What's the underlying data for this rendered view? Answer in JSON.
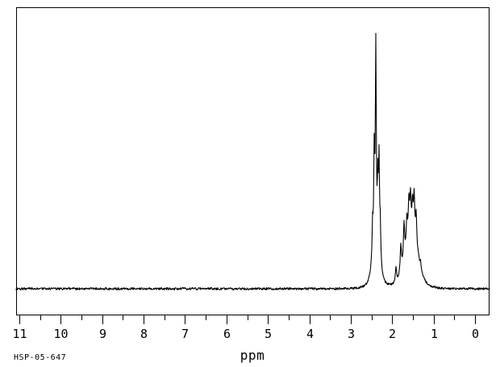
{
  "page": {
    "background": "#ffffff",
    "ink": "#000000"
  },
  "footer": {
    "axis_label": "ppm",
    "sample_id": "HSP-05-647"
  },
  "chart_data": {
    "type": "line",
    "subtype": "1H NMR spectrum",
    "title": "",
    "xlabel": "ppm",
    "ylabel": "",
    "grid": false,
    "legend": false,
    "x_axis": {
      "reversed": true,
      "displayed_range": [
        11.08,
        -0.35
      ],
      "major_tick_values": [
        11,
        10,
        9,
        8,
        7,
        6,
        5,
        4,
        3,
        2,
        1,
        0
      ],
      "tick_labels": [
        "11",
        "10",
        "9",
        "8",
        "7",
        "6",
        "5",
        "4",
        "3",
        "2",
        "1",
        "0"
      ],
      "minor_tick_step": 0.5
    },
    "baseline_relative_intensity": 0,
    "max_relative_intensity": 1.0,
    "peak_groups": [
      {
        "name": "multiplet-A",
        "center_ppm": 2.39,
        "linewidth_ppm": 0.013,
        "envelopes": [
          {
            "height": 0.14,
            "sigma_ppm": 0.08
          },
          {
            "height": 0.025,
            "sigma_ppm": 0.18
          }
        ],
        "lines": [
          {
            "ppm": 2.47,
            "intensity": 0.31
          },
          {
            "ppm": 2.43,
            "intensity": 0.61
          },
          {
            "ppm": 2.39,
            "intensity": 1.0
          },
          {
            "ppm": 2.35,
            "intensity": 0.51
          },
          {
            "ppm": 2.32,
            "intensity": 0.56
          },
          {
            "ppm": 2.29,
            "intensity": 0.31
          }
        ]
      },
      {
        "name": "multiplet-B",
        "center_ppm": 1.53,
        "linewidth_ppm": 0.018,
        "envelopes": [
          {
            "height": 0.155,
            "sigma_ppm": 0.145
          },
          {
            "height": 0.03,
            "sigma_ppm": 0.3
          }
        ],
        "lines": [
          {
            "ppm": 1.91,
            "intensity": 0.09
          },
          {
            "ppm": 1.79,
            "intensity": 0.18
          },
          {
            "ppm": 1.71,
            "intensity": 0.27
          },
          {
            "ppm": 1.65,
            "intensity": 0.3
          },
          {
            "ppm": 1.6,
            "intensity": 0.38
          },
          {
            "ppm": 1.56,
            "intensity": 0.4
          },
          {
            "ppm": 1.51,
            "intensity": 0.37
          },
          {
            "ppm": 1.47,
            "intensity": 0.39
          },
          {
            "ppm": 1.42,
            "intensity": 0.31
          },
          {
            "ppm": 1.36,
            "intensity": 0.14
          },
          {
            "ppm": 1.31,
            "intensity": 0.11
          }
        ]
      }
    ]
  }
}
